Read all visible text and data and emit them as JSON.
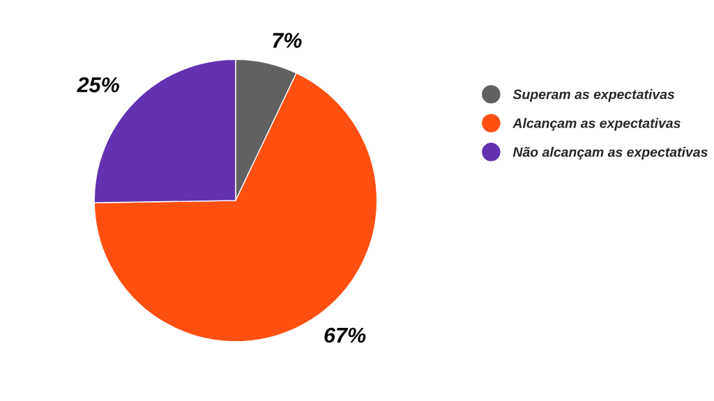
{
  "chart_data": {
    "type": "pie",
    "categories": [
      "Superam as expectativas",
      "Alcançam as expectativas",
      "Não alcançam as expectativas"
    ],
    "values": [
      7,
      67,
      25
    ],
    "value_labels": [
      "7%",
      "67%",
      "25%"
    ],
    "colors": [
      "#616161",
      "#ff5011",
      "#6232b0"
    ],
    "legend": "right"
  }
}
